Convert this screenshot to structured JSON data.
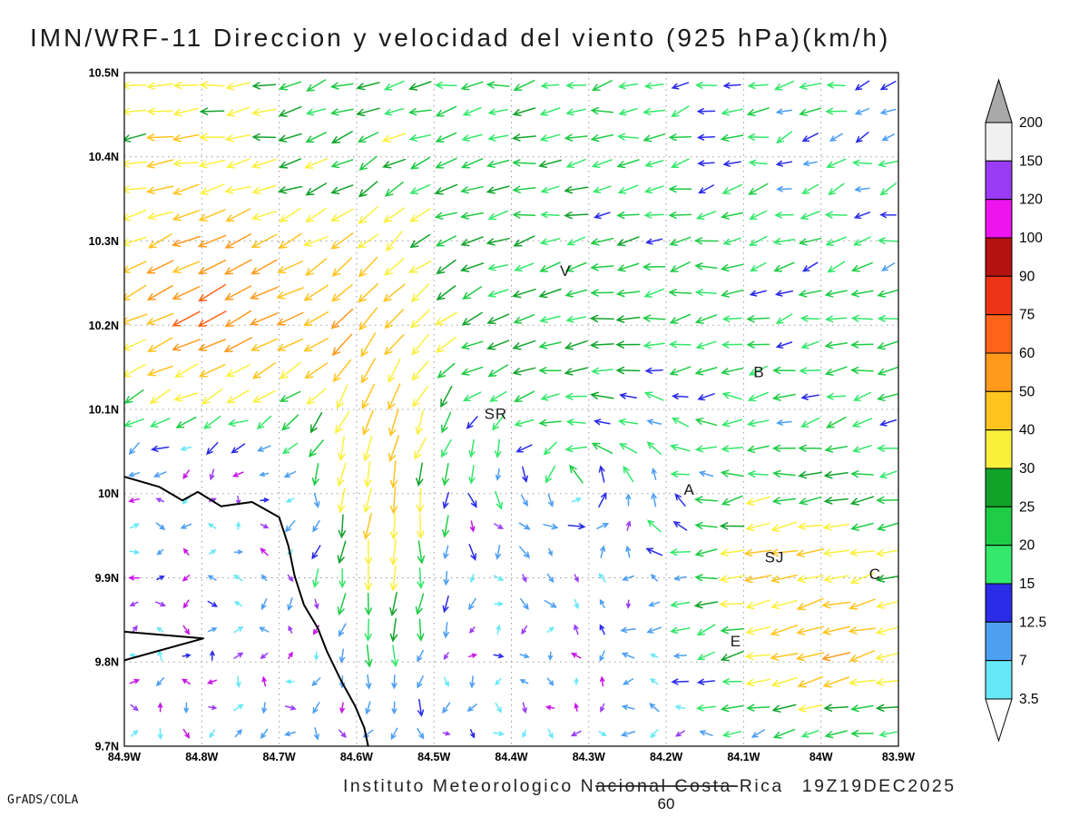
{
  "title": "IMN/WRF-11 Direccion y velocidad del viento (925 hPa)(km/h)",
  "credit": "GrADS/COLA",
  "footer": {
    "caption": "Instituto Meteorologico Nacional Costa Rica",
    "timestamp": "19Z19DEC2025",
    "reference_vector_label": "60"
  },
  "chart_data": {
    "type": "vector_field",
    "model": "IMN/WRF-11",
    "variable": "Direccion y velocidad del viento",
    "level": "925 hPa",
    "units": "km/h",
    "title": "IMN/WRF-11 Direccion y velocidad del viento (925 hPa)(km/h)",
    "axes": {
      "lon_range_deg_w": [
        84.9,
        83.9
      ],
      "lat_range_deg_n": [
        9.7,
        10.5
      ],
      "grid_style": "dotted, every 0.1 degree",
      "lon_ticks": [
        {
          "label": "84.9W",
          "value": 84.9
        },
        {
          "label": "84.8W",
          "value": 84.8
        },
        {
          "label": "84.7W",
          "value": 84.7
        },
        {
          "label": "84.6W",
          "value": 84.6
        },
        {
          "label": "84.5W",
          "value": 84.5
        },
        {
          "label": "84.4W",
          "value": 84.4
        },
        {
          "label": "84.3W",
          "value": 84.3
        },
        {
          "label": "84.2W",
          "value": 84.2
        },
        {
          "label": "84.1W",
          "value": 84.1
        },
        {
          "label": "84W",
          "value": 84.0
        },
        {
          "label": "83.9W",
          "value": 83.9
        }
      ],
      "lat_ticks": [
        {
          "label": "10.5N",
          "value": 10.5
        },
        {
          "label": "10.4N",
          "value": 10.4
        },
        {
          "label": "10.3N",
          "value": 10.3
        },
        {
          "label": "10.2N",
          "value": 10.2
        },
        {
          "label": "10.1N",
          "value": 10.1
        },
        {
          "label": "10N",
          "value": 10.0
        },
        {
          "label": "9.9N",
          "value": 9.9
        },
        {
          "label": "9.8N",
          "value": 9.8
        },
        {
          "label": "9.7N",
          "value": 9.7
        }
      ]
    },
    "colorbar": {
      "levels": [
        3.5,
        7,
        12.5,
        15,
        20,
        25,
        30,
        40,
        50,
        60,
        75,
        90,
        100,
        120,
        150,
        200
      ],
      "labels": [
        "200",
        "150",
        "120",
        "100",
        "90",
        "75",
        "60",
        "50",
        "40",
        "30",
        "25",
        "20",
        "15",
        "12.5",
        "7",
        "3.5"
      ],
      "bin_colors": [
        "#66E8F7",
        "#4D9FF2",
        "#2B2BE8",
        "#33E86A",
        "#1FCC45",
        "#12A32B",
        "#FAF03C",
        "#FFC41F",
        "#FF9A1C",
        "#FF6319",
        "#EE3417",
        "#B51212",
        "#EE14EE",
        "#9A3CF5",
        "#F0F0F0"
      ],
      "below_color": "#FFFFFF",
      "above_color": "#A9A9A9"
    },
    "weak_wind_palette": [
      "#9A3CF5",
      "#4D9FF2",
      "#2B2BE8",
      "#4D9FF2",
      "#66E8F7",
      "#9A3CF5",
      "#66E8F7",
      "#C814E8"
    ],
    "stations": [
      {
        "label": "V",
        "lon_w": 84.33,
        "lat_n": 10.265
      },
      {
        "label": "B",
        "lon_w": 84.08,
        "lat_n": 10.145
      },
      {
        "label": "SR",
        "lon_w": 84.42,
        "lat_n": 10.095
      },
      {
        "label": "A",
        "lon_w": 84.17,
        "lat_n": 10.005
      },
      {
        "label": "SJ",
        "lon_w": 84.06,
        "lat_n": 9.925
      },
      {
        "label": "C",
        "lon_w": 83.93,
        "lat_n": 9.905
      },
      {
        "label": "E",
        "lon_w": 84.11,
        "lat_n": 9.825
      }
    ],
    "coastline": {
      "main": [
        [
          84.9,
          10.02
        ],
        [
          84.855,
          10.008
        ],
        [
          84.825,
          9.992
        ],
        [
          84.805,
          10.002
        ],
        [
          84.775,
          9.985
        ],
        [
          84.735,
          9.99
        ],
        [
          84.7,
          9.972
        ],
        [
          84.688,
          9.938
        ],
        [
          84.68,
          9.902
        ],
        [
          84.668,
          9.868
        ],
        [
          84.65,
          9.84
        ],
        [
          84.638,
          9.812
        ],
        [
          84.62,
          9.778
        ],
        [
          84.602,
          9.748
        ],
        [
          84.59,
          9.722
        ],
        [
          84.585,
          9.7
        ]
      ],
      "spit": [
        [
          84.9,
          9.836
        ],
        [
          84.798,
          9.828
        ],
        [
          84.9,
          9.802
        ]
      ]
    },
    "arrow_grid": {
      "cols": 30,
      "rows": 26,
      "spacing_deg": 0.033
    },
    "flow_features": [
      {
        "type": "noise",
        "amp_min": 2.5,
        "amp_max": 7,
        "desc": "weak variable winds over SW (Pacific) quadrant, 2-7 km/h"
      },
      {
        "type": "band",
        "lat_start": 10.0,
        "lat_full": 10.22,
        "u": -21,
        "v": -4,
        "east_taper": {
          "factor": 0.7,
          "from": 83.9,
          "span": 0.6
        },
        "desc": "easterly trade flow ~15-25 km/h north of 10N"
      },
      {
        "type": "jet",
        "center": [
          84.78,
          10.22
        ],
        "sigma": [
          0.11,
          0.09
        ],
        "u": -32,
        "v": -24,
        "desc": "strong NE jet in NW corner, 50-75 km/h"
      },
      {
        "type": "jet",
        "center": [
          84.85,
          10.43
        ],
        "sigma": [
          0.09,
          0.07
        ],
        "u": -14,
        "v": -1,
        "desc": "enhanced easterlies top-left ~30-40 km/h"
      },
      {
        "type": "jet",
        "center": [
          84.57,
          10.05
        ],
        "sigma": [
          0.06,
          0.2
        ],
        "u": -6,
        "v": -38,
        "desc": "southward jet column near 84.6W, 40-60 km/h"
      },
      {
        "type": "vortex",
        "center": [
          84.32,
          10.02
        ],
        "radius": 0.12,
        "strength": 14,
        "desc": "weak cyclonic eddy over Central Valley"
      },
      {
        "type": "jet",
        "center": [
          83.98,
          9.88
        ],
        "sigma": [
          0.17,
          0.16
        ],
        "u": -30,
        "v": -6,
        "desc": "moderate easterlies SE sector 25-45 km/h"
      },
      {
        "type": "jet",
        "center": [
          84.0,
          9.82
        ],
        "sigma": [
          0.07,
          0.05
        ],
        "u": -20,
        "v": -8,
        "desc": "orange maximum near 84W 9.8N ~50 km/h"
      },
      {
        "type": "jet",
        "center": [
          84.07,
          9.93
        ],
        "sigma": [
          0.06,
          0.05
        ],
        "u": -15,
        "v": -5,
        "desc": "gold arrows near SJ"
      }
    ]
  }
}
